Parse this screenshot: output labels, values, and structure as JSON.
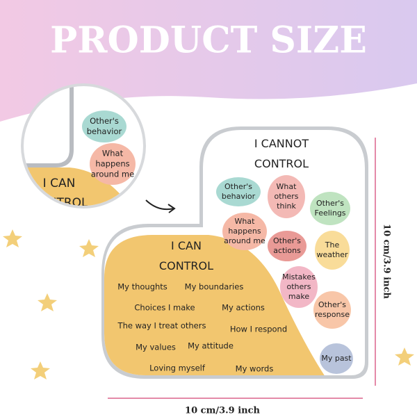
{
  "header": {
    "title": "PRODUCT SIZE"
  },
  "zoom": {
    "bubbles": [
      {
        "lines": [
          "Other's",
          "behavior"
        ],
        "color": "#a9d9d2"
      },
      {
        "lines": [
          "What",
          "happens",
          "around me"
        ],
        "color": "#f5b8a6"
      }
    ],
    "can_control_lines": [
      "I CAN",
      "CONTROL"
    ]
  },
  "cannot_control": {
    "title_lines": [
      "I CANNOT",
      "CONTROL"
    ],
    "bubbles": [
      {
        "lines": [
          "Other's",
          "behavior"
        ],
        "color": "#a9d9d2"
      },
      {
        "lines": [
          "What",
          "others",
          "think"
        ],
        "color": "#f3b9b5"
      },
      {
        "lines": [
          "Other's",
          "Feelings"
        ],
        "color": "#bfe3c0"
      },
      {
        "lines": [
          "What",
          "happens",
          "around me"
        ],
        "color": "#f5b8a6"
      },
      {
        "lines": [
          "Other's",
          "actions"
        ],
        "color": "#e99a96"
      },
      {
        "lines": [
          "The",
          "weather"
        ],
        "color": "#f9dc99"
      },
      {
        "lines": [
          "Mistakes",
          "others",
          "make"
        ],
        "color": "#f2b7c6"
      },
      {
        "lines": [
          "Other's",
          "response"
        ],
        "color": "#f8c6a8"
      },
      {
        "lines": [
          "My past"
        ],
        "color": "#b8c3db"
      }
    ]
  },
  "can_control": {
    "title_lines": [
      "I CAN",
      "CONTROL"
    ],
    "items": [
      "My thoughts",
      "My boundaries",
      "Choices I make",
      "My actions",
      "The way I treat others",
      "How I respond",
      "My values",
      "My attitude",
      "Loving myself",
      "My words"
    ]
  },
  "dimensions": {
    "height": "10 cm/3.9 inch",
    "width": "10 cm/3.9 inch"
  }
}
